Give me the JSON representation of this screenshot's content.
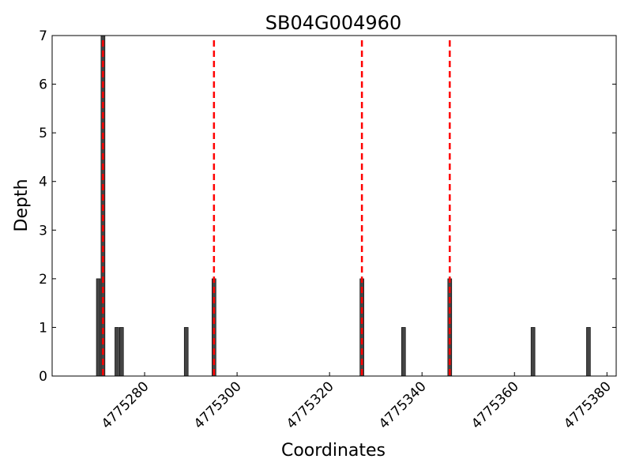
{
  "chart_data": {
    "type": "bar",
    "title": "SB04G004960",
    "xlabel": "Coordinates",
    "ylabel": "Depth",
    "xlim": [
      4775260,
      4775382
    ],
    "ylim": [
      0,
      7
    ],
    "grid": false,
    "xticks": [
      4775280,
      4775300,
      4775320,
      4775340,
      4775360,
      4775380
    ],
    "yticks": [
      0,
      1,
      2,
      3,
      4,
      5,
      6,
      7
    ],
    "bar_color": "#444444",
    "bars": [
      {
        "x": 4775270,
        "value": 2
      },
      {
        "x": 4775271,
        "value": 7
      },
      {
        "x": 4775274,
        "value": 1
      },
      {
        "x": 4775275,
        "value": 1
      },
      {
        "x": 4775289,
        "value": 1
      },
      {
        "x": 4775295,
        "value": 2
      },
      {
        "x": 4775327,
        "value": 2
      },
      {
        "x": 4775336,
        "value": 1
      },
      {
        "x": 4775346,
        "value": 2
      },
      {
        "x": 4775364,
        "value": 1
      },
      {
        "x": 4775376,
        "value": 1
      }
    ],
    "vlines": [
      {
        "x": 4775271,
        "color": "#ff0000",
        "style": "dashed"
      },
      {
        "x": 4775295,
        "color": "#ff0000",
        "style": "dashed"
      },
      {
        "x": 4775327,
        "color": "#ff0000",
        "style": "dashed"
      },
      {
        "x": 4775346,
        "color": "#ff0000",
        "style": "dashed"
      }
    ]
  }
}
